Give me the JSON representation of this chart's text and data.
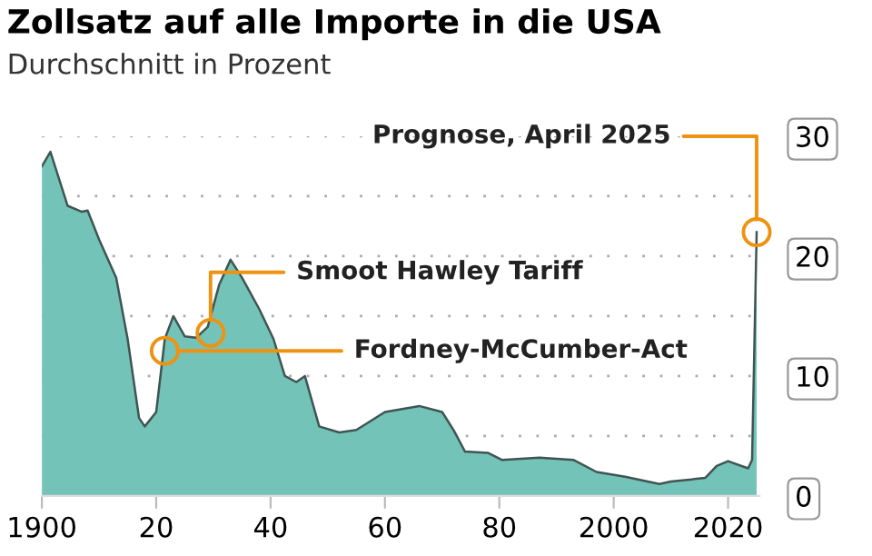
{
  "chart_data": {
    "type": "area",
    "title": "Zollsatz auf alle Importe in die USA",
    "subtitle": "Durchschnitt in Prozent",
    "x": [
      1900,
      1901.5,
      1904.5,
      1907,
      1908,
      1910,
      1913,
      1915,
      1917,
      1918,
      1920,
      1921.5,
      1923,
      1925,
      1927,
      1929,
      1931,
      1933,
      1935,
      1938,
      1940.5,
      1942.5,
      1944.5,
      1946,
      1948.5,
      1952,
      1955,
      1960,
      1966,
      1970,
      1972,
      1974,
      1978,
      1980.5,
      1987,
      1993,
      1997,
      2002,
      2008,
      2010,
      2016,
      2018,
      2020,
      2023.5,
      2024.2,
      2025
    ],
    "series": [
      {
        "color": "#74c3b8",
        "values": [
          27.5,
          28.7,
          24.2,
          23.7,
          23.8,
          21.4,
          18.2,
          13.1,
          6.5,
          5.8,
          7.0,
          13.1,
          15.0,
          13.3,
          13.2,
          14.1,
          17.6,
          19.7,
          18.2,
          15.6,
          13.1,
          10.0,
          9.5,
          10.0,
          5.8,
          5.3,
          5.5,
          7.0,
          7.5,
          7.0,
          5.5,
          3.7,
          3.6,
          3.0,
          3.2,
          3.0,
          2.0,
          1.6,
          1.0,
          1.2,
          1.5,
          2.5,
          2.9,
          2.3,
          3.0,
          22
        ]
      }
    ],
    "annotations": [
      {
        "text": "Prognose, April 2025",
        "x": 2025,
        "y": 22
      },
      {
        "text": "Smoot Hawley Tariff",
        "x": 1929.5,
        "y": 13.6
      },
      {
        "text": "Fordney-McCumber-Act",
        "x": 1921.5,
        "y": 12.1
      }
    ],
    "xlim": [
      1900,
      2025.5
    ],
    "ylim": [
      0,
      30
    ],
    "xticks": [
      1900,
      {
        "value": 1920,
        "label": "20"
      },
      {
        "value": 1940,
        "label": "40"
      },
      {
        "value": 1960,
        "label": "60"
      },
      {
        "value": 1980,
        "label": "80"
      },
      2000,
      2020
    ],
    "yticks": [
      0,
      {
        "value": 5,
        "label": null
      },
      10,
      {
        "value": 15,
        "label": null
      },
      20,
      {
        "value": 25,
        "label": null
      },
      30
    ],
    "grid": "y"
  }
}
